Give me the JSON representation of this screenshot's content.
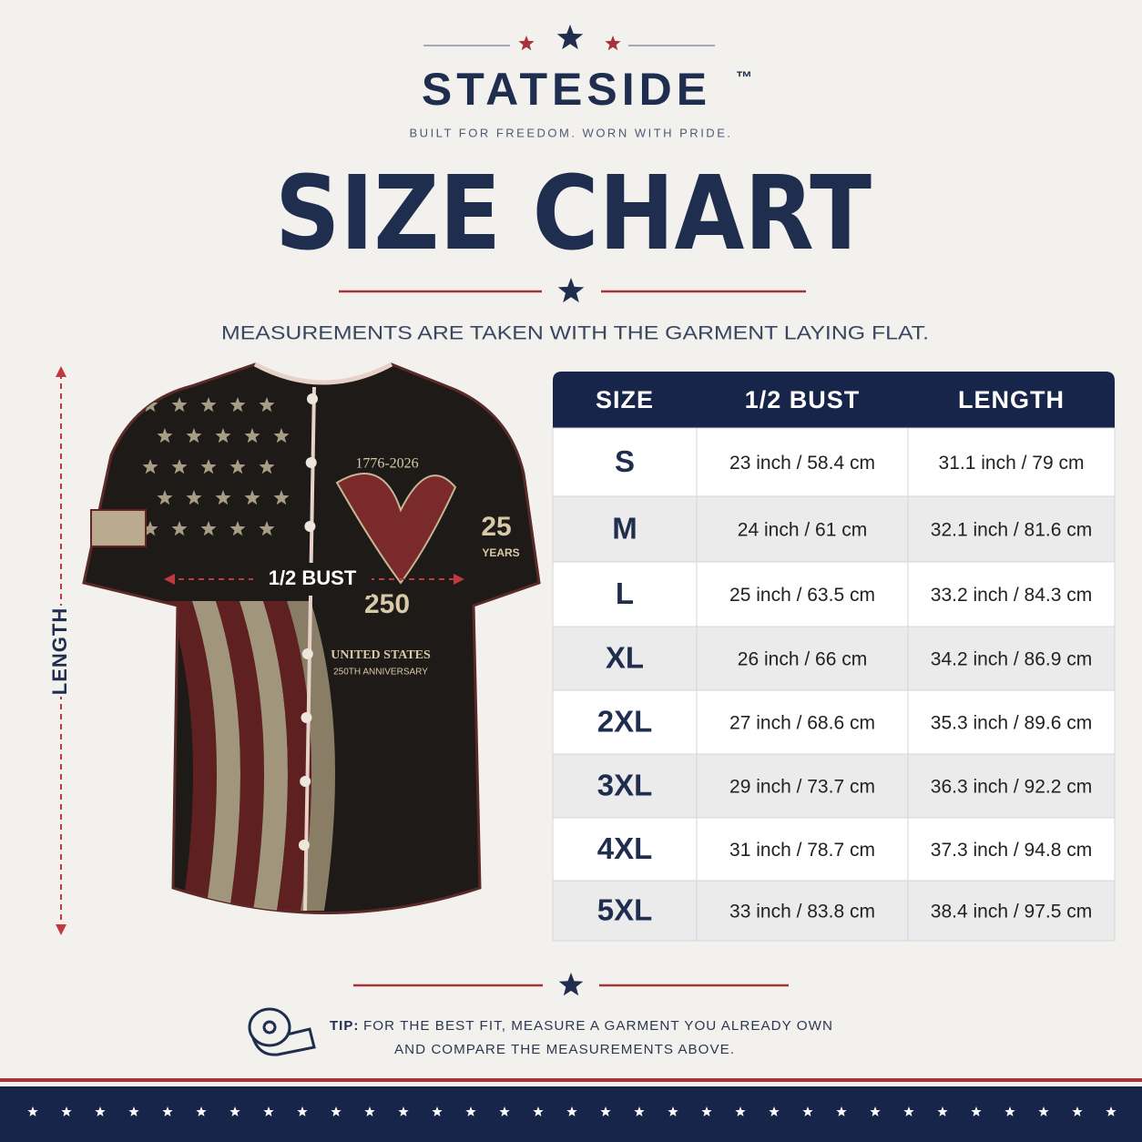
{
  "header": {
    "brand": "STATESIDE",
    "trademark": "™",
    "tagline": "BUILT FOR FREEDOM. WORN WITH PRIDE.",
    "title": "SIZE CHART",
    "subtitle": "MEASUREMENTS ARE TAKEN WITH THE GARMENT LAYING FLAT."
  },
  "jersey": {
    "dates": "1776-2026",
    "number": "250",
    "line1": "UNITED STATES",
    "line2": "250TH ANNIVERSARY",
    "sleeve_number": "25",
    "sleeve_text": "YEARS",
    "bust_label": "1/2 BUST",
    "length_label": "LENGTH"
  },
  "table": {
    "columns": [
      "SIZE",
      "1/2 BUST",
      "LENGTH"
    ],
    "rows": [
      [
        "S",
        "23 inch / 58.4 cm",
        "31.1 inch / 79 cm"
      ],
      [
        "M",
        "24 inch / 61 cm",
        "32.1 inch / 81.6 cm"
      ],
      [
        "L",
        "25 inch / 63.5 cm",
        "33.2 inch / 84.3 cm"
      ],
      [
        "XL",
        "26 inch / 66 cm",
        "34.2 inch / 86.9 cm"
      ],
      [
        "2XL",
        "27 inch / 68.6 cm",
        "35.3 inch / 89.6 cm"
      ],
      [
        "3XL",
        "29 inch / 73.7 cm",
        "36.3 inch / 92.2 cm"
      ],
      [
        "4XL",
        "31 inch / 78.7 cm",
        "37.3 inch / 94.8 cm"
      ],
      [
        "5XL",
        "33 inch / 83.8 cm",
        "38.4 inch / 97.5 cm"
      ]
    ]
  },
  "tip": {
    "label": "TIP:",
    "line1": "FOR THE BEST FIT, MEASURE A GARMENT YOU ALREADY OWN",
    "line2": "AND COMPARE THE MEASUREMENTS ABOVE."
  }
}
